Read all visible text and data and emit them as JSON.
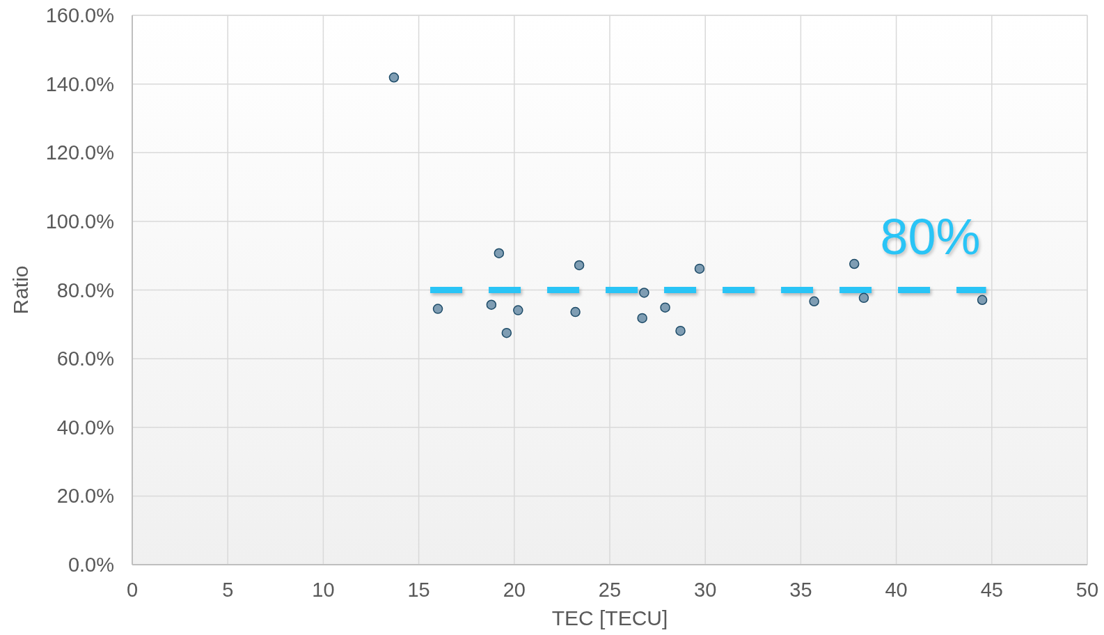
{
  "chart_data": {
    "type": "scatter",
    "xlabel": "TEC [TECU]",
    "ylabel": "Ratio",
    "xlim": [
      0,
      50
    ],
    "xticks": [
      0,
      5,
      10,
      15,
      20,
      25,
      30,
      35,
      40,
      45,
      50
    ],
    "ylim": [
      0,
      160
    ],
    "yticks": [
      {
        "value": 0,
        "label": "0.0%"
      },
      {
        "value": 20,
        "label": "20.0%"
      },
      {
        "value": 40,
        "label": "40.0%"
      },
      {
        "value": 60,
        "label": "60.0%"
      },
      {
        "value": 80,
        "label": "80.0%"
      },
      {
        "value": 100,
        "label": "100.0%"
      },
      {
        "value": 120,
        "label": "120.0%"
      },
      {
        "value": 140,
        "label": "140.0%"
      },
      {
        "value": 160,
        "label": "160.0%"
      }
    ],
    "grid": true,
    "marker": "circle",
    "series": [
      {
        "color": "#7f9db3",
        "x": [
          13.7,
          16.0,
          18.8,
          19.2,
          19.6,
          20.2,
          23.2,
          23.4,
          26.7,
          26.8,
          27.9,
          28.7,
          29.7,
          35.7,
          37.8,
          38.3,
          44.5
        ],
        "values": [
          141.9,
          74.5,
          75.7,
          90.7,
          67.5,
          74.1,
          73.6,
          87.2,
          71.8,
          79.2,
          74.9,
          68.1,
          86.2,
          76.7,
          87.6,
          77.7,
          77.1
        ]
      },
      {
        "type": "line",
        "color": "#29c4f6",
        "line_style": "dashed",
        "marker": "none",
        "x": [
          15.6,
          44.7
        ],
        "values": [
          80,
          80
        ]
      }
    ],
    "annotations": [
      "80%"
    ]
  }
}
